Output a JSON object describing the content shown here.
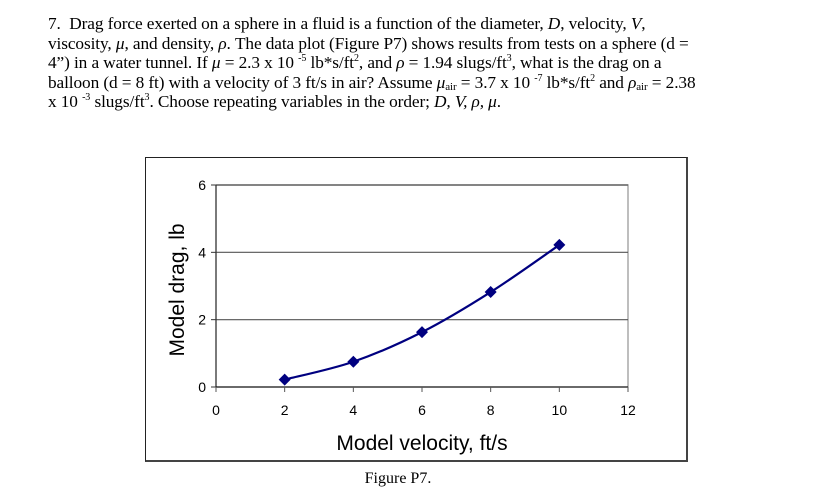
{
  "problem": {
    "number": "7.",
    "lines": {
      "l1a": "Drag force exerted on a sphere in a fluid is a function of the diameter, ",
      "l1_D": "D",
      "l1b": ", velocity, ",
      "l1_V": "V",
      "l1c": ",",
      "l2a": "viscosity, ",
      "l2_mu": "μ",
      "l2b": ", and density, ",
      "l2_rho": "ρ",
      "l2c": ".  The data plot (Figure P7) shows results from tests on a sphere (d =",
      "l3a": "4”) in a water tunnel. If ",
      "l3_mu": "μ",
      "l3b": " = 2.3 x 10 ",
      "l3_exp1": "-5",
      "l3c": " lb*s/ft",
      "l3_exp2": "2",
      "l3d": ", and ",
      "l3_rho": "ρ",
      "l3e": " = 1.94 slugs/ft",
      "l3_exp3": "3",
      "l3f": ", what is the drag on a",
      "l4a": "balloon (d = 8 ft) with a velocity of 3 ft/s in air?  Assume ",
      "l4_mu": "μ",
      "l4_sub1": "air",
      "l4b": " = 3.7 x 10 ",
      "l4_exp1": "-7",
      "l4c": " lb*s/ft",
      "l4_exp2": "2",
      "l4d": " and ",
      "l4_rho": "ρ",
      "l4_sub2": "air",
      "l4e": " = 2.38",
      "l5a": "x 10 ",
      "l5_exp1": "-3",
      "l5b": " slugs/ft",
      "l5_exp2": "3",
      "l5c": ".  Choose repeating variables in the order; ",
      "l5_vars": "D, V, ρ, μ",
      "l5d": "."
    }
  },
  "figure": {
    "caption": "Figure P7."
  },
  "chart_data": {
    "type": "line",
    "title": "",
    "xlabel": "Model velocity, ft/s",
    "ylabel": "Model drag, lb",
    "xlim": [
      0,
      12
    ],
    "ylim": [
      0,
      6
    ],
    "xticks": [
      "0",
      "2",
      "4",
      "6",
      "8",
      "10",
      "12"
    ],
    "yticks": [
      "0",
      "2",
      "4",
      "6"
    ],
    "grid": "horizontal major gridlines",
    "legend": "none",
    "marker": "diamond",
    "series_color": "#000080",
    "series": [
      {
        "name": "Model drag",
        "x": [
          2,
          4,
          6,
          8,
          10
        ],
        "values": [
          0.22,
          0.75,
          1.63,
          2.82,
          4.22
        ]
      }
    ]
  }
}
